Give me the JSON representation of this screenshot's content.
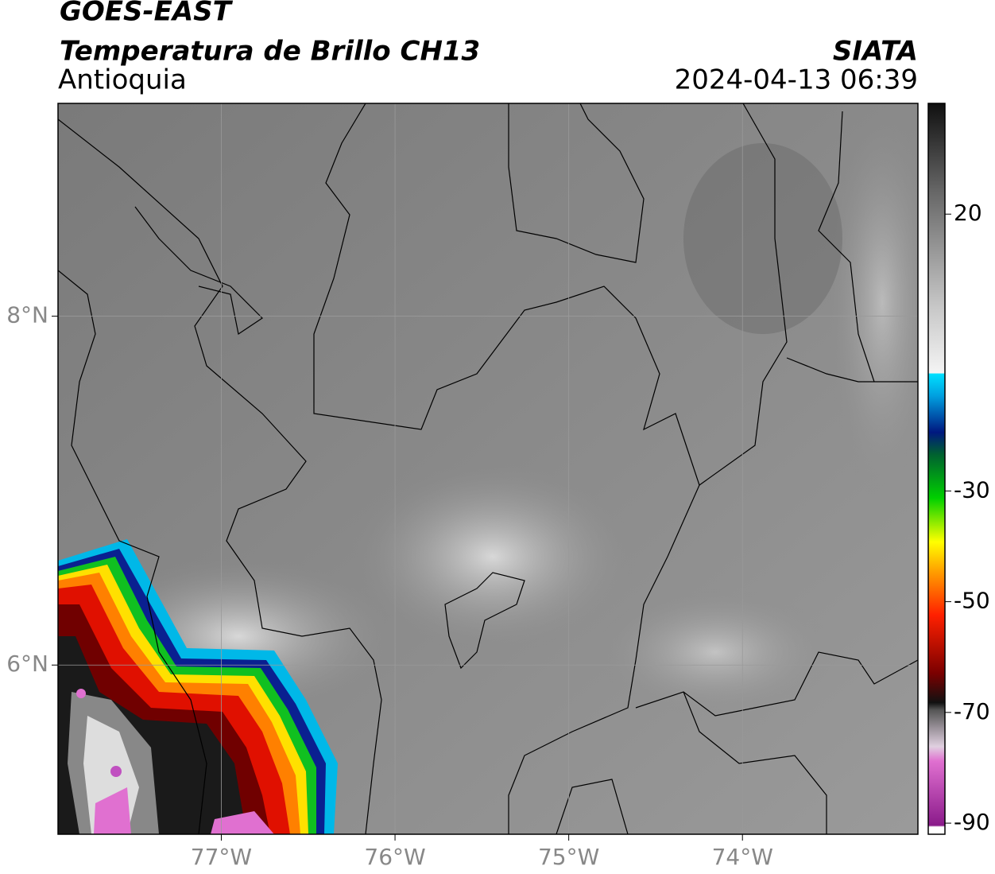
{
  "header": {
    "title": "GOES-EAST",
    "subtitle": "Temperatura de Brillo CH13",
    "region": "Antioquia",
    "source": "SIATA",
    "timestamp": "2024-04-13 06:39"
  },
  "map": {
    "xlim": [
      -77.94,
      -72.99
    ],
    "ylim": [
      5.03,
      9.22
    ],
    "xticks": [
      {
        "value": -77,
        "label": "77°W"
      },
      {
        "value": -76,
        "label": "76°W"
      },
      {
        "value": -75,
        "label": "75°W"
      },
      {
        "value": -74,
        "label": "74°W"
      }
    ],
    "yticks": [
      {
        "value": 8,
        "label": "8°N"
      },
      {
        "value": 6,
        "label": "6°N"
      }
    ],
    "grid": true
  },
  "colorbar": {
    "lim": [
      -92,
      40
    ],
    "ticks": [
      20,
      -30,
      -50,
      -70,
      -90
    ]
  }
}
